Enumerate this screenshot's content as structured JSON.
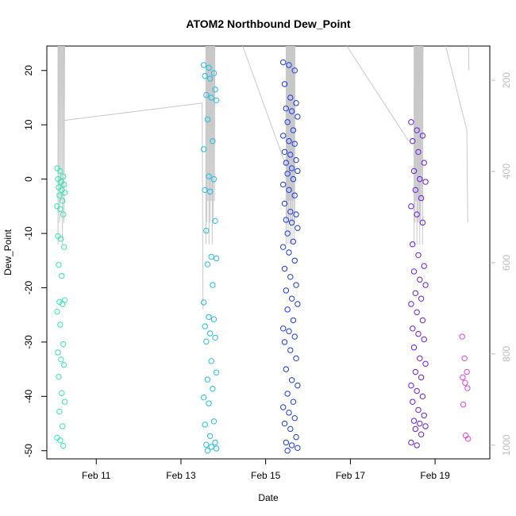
{
  "chart_data": {
    "type": "scatter",
    "title": "ATOM2 Northbound Dew_Point",
    "xlabel": "Date",
    "ylabel": "Dew_Point",
    "x_ticks": [
      {
        "date": "2015-02-11",
        "label": "Feb 11"
      },
      {
        "date": "2015-02-13",
        "label": "Feb 13"
      },
      {
        "date": "2015-02-15",
        "label": "Feb 15"
      },
      {
        "date": "2015-02-17",
        "label": "Feb 17"
      },
      {
        "date": "2015-02-19",
        "label": "Feb 19"
      }
    ],
    "xlim": [
      "2015-02-09T20:00",
      "2015-02-20T07:00"
    ],
    "y_ticks": [
      20,
      10,
      0,
      -10,
      -20,
      -30,
      -40,
      -50
    ],
    "ylim": [
      -51.5,
      24.5
    ],
    "y2_ticks": [
      200,
      400,
      600,
      800,
      1000
    ],
    "y2lim": [
      1030,
      125
    ],
    "grid": false,
    "colors": {
      "s1": "#34e6b4",
      "s2": "#1ec0e6",
      "s3": "#1a3ae6",
      "s4": "#6a1ee6",
      "s5": "#e040e6",
      "pressure_line": "#c8c8c8",
      "axis": "#000000",
      "axis2": "#bdbdbd"
    },
    "series": [
      {
        "color_key": "s1",
        "dew_point": [
          2,
          1.5,
          0.5,
          0,
          -0.5,
          -1,
          -1.5,
          -2,
          -2.5,
          -3,
          -4,
          -5,
          -5.5,
          -6.5,
          -10.5,
          -11,
          -12.5,
          -15.8,
          -17.8,
          -22.3,
          -22.6,
          -23,
          -24.4,
          -26.8,
          -30.4,
          -31.9,
          -33.2,
          -34.2,
          -36.4,
          -39.4,
          -41,
          -42.8,
          -45.5,
          -47.6,
          -48.1,
          -49.1
        ]
      },
      {
        "color_key": "s2",
        "dew_point": [
          21,
          20.5,
          19.5,
          19,
          18.5,
          16.5,
          15.5,
          15,
          14.5,
          11,
          7,
          5.5,
          0.5,
          0,
          -2,
          -2.3,
          -7.7,
          -9.5,
          -14.3,
          -14.6,
          -15.7,
          -19.5,
          -22.7,
          -25.4,
          -25.8,
          -27.1,
          -28.4,
          -29.2,
          -29.9,
          -33.5,
          -35.6,
          -36.9,
          -38.6,
          -40.2,
          -41.3,
          -44.6,
          -45.2,
          -47.3,
          -48.5,
          -48.9,
          -49.3,
          -49.6,
          -50
        ]
      },
      {
        "color_key": "s3",
        "dew_point": [
          21.5,
          21,
          20,
          17.5,
          15,
          14,
          13,
          12.5,
          11.5,
          10.5,
          9,
          8,
          7,
          6.5,
          5,
          4.5,
          3.5,
          3,
          2,
          1.5,
          1,
          0,
          -1,
          -2,
          -3,
          -4.5,
          -6,
          -6.5,
          -7.5,
          -8,
          -9,
          -10,
          -11.5,
          -12.5,
          -13.5,
          -15,
          -16.5,
          -18,
          -19.5,
          -20.5,
          -22,
          -23,
          -24,
          -26,
          -27.5,
          -28,
          -29,
          -30,
          -31.5,
          -33,
          -35,
          -37,
          -38,
          -39.5,
          -41,
          -42,
          -43,
          -44,
          -45,
          -46,
          -47.5,
          -48.5,
          -49,
          -49.5,
          -50
        ]
      },
      {
        "color_key": "s4",
        "dew_point": [
          10.5,
          9,
          8,
          7,
          5,
          3,
          1.5,
          0,
          -0.5,
          -2,
          -3.5,
          -5,
          -6.5,
          -8,
          -12,
          -14,
          -16,
          -17,
          -18.5,
          -19.5,
          -21,
          -22,
          -23,
          -24.5,
          -26,
          -27.5,
          -28.5,
          -29.5,
          -31,
          -33,
          -34,
          -35.5,
          -36.5,
          -38,
          -39,
          -40,
          -41,
          -42.5,
          -43.5,
          -44.5,
          -45,
          -45.5,
          -46,
          -47,
          -48.5,
          -49
        ]
      },
      {
        "color_key": "s5",
        "dew_point": [
          -29,
          -33,
          -35.5,
          -36.5,
          -37.5,
          -38.5,
          -41.5,
          -47.2,
          -47.8
        ]
      }
    ]
  }
}
